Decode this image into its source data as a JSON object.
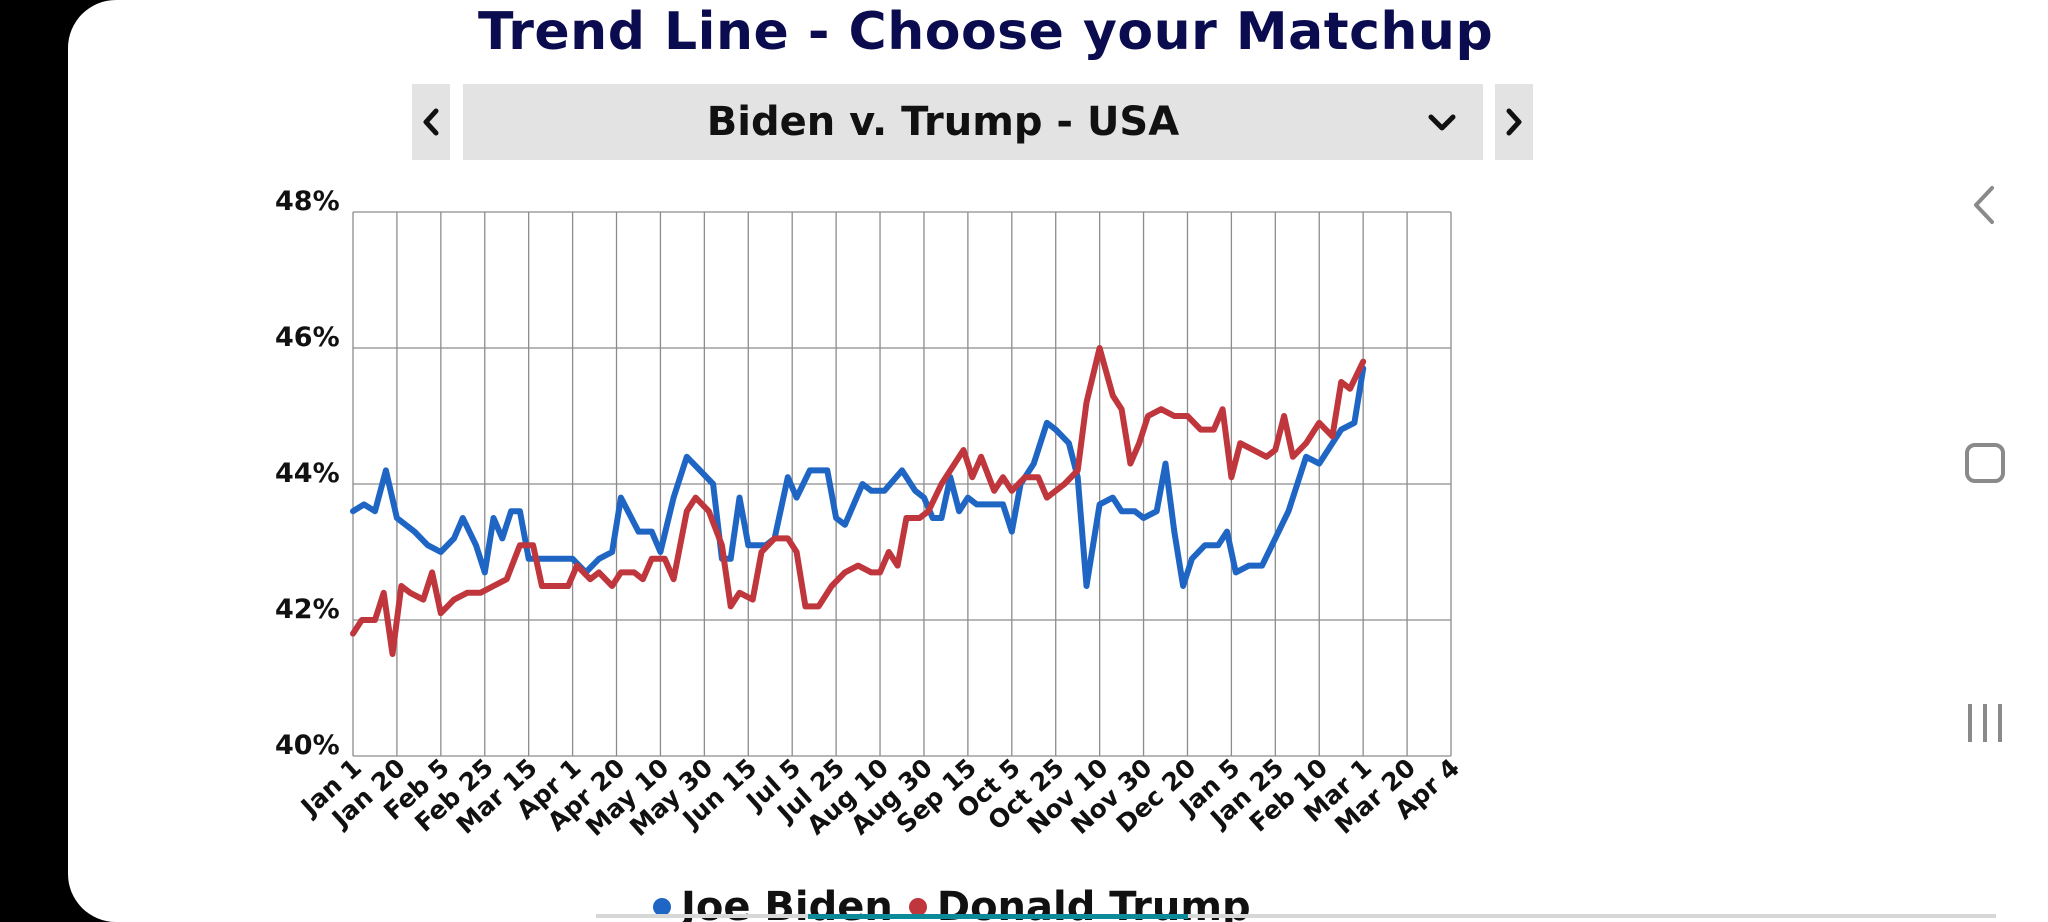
{
  "header": {
    "title": "Trend Line - Choose your Matchup"
  },
  "matchup": {
    "selected": "Biden v. Trump - USA",
    "prev_icon": "chevron-left-icon",
    "next_icon": "chevron-right-icon",
    "dropdown_icon": "chevron-down-icon"
  },
  "legend": [
    {
      "label": "Joe Biden",
      "color": "#1f66c4"
    },
    {
      "label": "Donald Trump",
      "color": "#c0363d"
    }
  ],
  "system_nav": [
    "back-icon",
    "home-icon",
    "recents-icon"
  ],
  "chart_data": {
    "type": "line",
    "ylim": [
      40,
      48
    ],
    "yticks": [
      "40%",
      "42%",
      "44%",
      "46%",
      "48%"
    ],
    "xticks": [
      "Jan 1",
      "Jan 20",
      "Feb 5",
      "Feb 25",
      "Mar 15",
      "Apr 1",
      "Apr 20",
      "May 10",
      "May 30",
      "Jun 15",
      "Jul 5",
      "Jul 25",
      "Aug 10",
      "Aug 30",
      "Sep 15",
      "Oct 5",
      "Oct 25",
      "Nov 10",
      "Nov 30",
      "Dec 20",
      "Jan 5",
      "Jan 25",
      "Feb 10",
      "Mar 1",
      "Mar 20",
      "Apr 4"
    ],
    "grid": true,
    "legend_position": "bottom",
    "series": [
      {
        "name": "Joe Biden",
        "color": "#1f66c4",
        "points": [
          [
            0,
            43.6
          ],
          [
            0.25,
            43.7
          ],
          [
            0.5,
            43.6
          ],
          [
            0.75,
            44.2
          ],
          [
            1,
            43.5
          ],
          [
            1.4,
            43.3
          ],
          [
            1.7,
            43.1
          ],
          [
            2,
            43.0
          ],
          [
            2.3,
            43.2
          ],
          [
            2.5,
            43.5
          ],
          [
            2.8,
            43.1
          ],
          [
            3,
            42.7
          ],
          [
            3.2,
            43.5
          ],
          [
            3.4,
            43.2
          ],
          [
            3.6,
            43.6
          ],
          [
            3.8,
            43.6
          ],
          [
            4,
            42.9
          ],
          [
            4.5,
            42.9
          ],
          [
            5,
            42.9
          ],
          [
            5.3,
            42.7
          ],
          [
            5.6,
            42.9
          ],
          [
            5.9,
            43.0
          ],
          [
            6.1,
            43.8
          ],
          [
            6.5,
            43.3
          ],
          [
            6.8,
            43.3
          ],
          [
            7,
            43.0
          ],
          [
            7.3,
            43.8
          ],
          [
            7.6,
            44.4
          ],
          [
            7.9,
            44.2
          ],
          [
            8.2,
            44.0
          ],
          [
            8.4,
            42.9
          ],
          [
            8.6,
            42.9
          ],
          [
            8.8,
            43.8
          ],
          [
            9,
            43.1
          ],
          [
            9.4,
            43.1
          ],
          [
            9.6,
            43.2
          ],
          [
            9.9,
            44.1
          ],
          [
            10.1,
            43.8
          ],
          [
            10.4,
            44.2
          ],
          [
            10.8,
            44.2
          ],
          [
            11,
            43.5
          ],
          [
            11.2,
            43.4
          ],
          [
            11.6,
            44.0
          ],
          [
            11.8,
            43.9
          ],
          [
            12.1,
            43.9
          ],
          [
            12.5,
            44.2
          ],
          [
            12.8,
            43.9
          ],
          [
            13,
            43.8
          ],
          [
            13.2,
            43.5
          ],
          [
            13.4,
            43.5
          ],
          [
            13.6,
            44.1
          ],
          [
            13.8,
            43.6
          ],
          [
            14,
            43.8
          ],
          [
            14.2,
            43.7
          ],
          [
            14.5,
            43.7
          ],
          [
            14.8,
            43.7
          ],
          [
            15,
            43.3
          ],
          [
            15.2,
            44.0
          ],
          [
            15.5,
            44.3
          ],
          [
            15.8,
            44.9
          ],
          [
            16,
            44.8
          ],
          [
            16.3,
            44.6
          ],
          [
            16.5,
            44.1
          ],
          [
            16.7,
            42.5
          ],
          [
            17,
            43.7
          ],
          [
            17.3,
            43.8
          ],
          [
            17.5,
            43.6
          ],
          [
            17.8,
            43.6
          ],
          [
            18,
            43.5
          ],
          [
            18.3,
            43.6
          ],
          [
            18.5,
            44.3
          ],
          [
            18.7,
            43.3
          ],
          [
            18.9,
            42.5
          ],
          [
            19.1,
            42.9
          ],
          [
            19.4,
            43.1
          ],
          [
            19.7,
            43.1
          ],
          [
            19.9,
            43.3
          ],
          [
            20.1,
            42.7
          ],
          [
            20.4,
            42.8
          ],
          [
            20.7,
            42.8
          ],
          [
            21,
            43.2
          ],
          [
            21.3,
            43.6
          ],
          [
            21.5,
            44.0
          ],
          [
            21.7,
            44.4
          ],
          [
            22,
            44.3
          ],
          [
            22.3,
            44.6
          ],
          [
            22.5,
            44.8
          ],
          [
            22.8,
            44.9
          ],
          [
            23,
            45.7
          ]
        ]
      },
      {
        "name": "Donald Trump",
        "color": "#c0363d",
        "points": [
          [
            0,
            41.8
          ],
          [
            0.2,
            42.0
          ],
          [
            0.5,
            42.0
          ],
          [
            0.7,
            42.4
          ],
          [
            0.9,
            41.5
          ],
          [
            1.1,
            42.5
          ],
          [
            1.3,
            42.4
          ],
          [
            1.6,
            42.3
          ],
          [
            1.8,
            42.7
          ],
          [
            2,
            42.1
          ],
          [
            2.3,
            42.3
          ],
          [
            2.6,
            42.4
          ],
          [
            2.9,
            42.4
          ],
          [
            3.2,
            42.5
          ],
          [
            3.5,
            42.6
          ],
          [
            3.8,
            43.1
          ],
          [
            4.1,
            43.1
          ],
          [
            4.3,
            42.5
          ],
          [
            4.6,
            42.5
          ],
          [
            4.9,
            42.5
          ],
          [
            5.1,
            42.8
          ],
          [
            5.4,
            42.6
          ],
          [
            5.6,
            42.7
          ],
          [
            5.9,
            42.5
          ],
          [
            6.1,
            42.7
          ],
          [
            6.4,
            42.7
          ],
          [
            6.6,
            42.6
          ],
          [
            6.8,
            42.9
          ],
          [
            7.1,
            42.9
          ],
          [
            7.3,
            42.6
          ],
          [
            7.6,
            43.6
          ],
          [
            7.8,
            43.8
          ],
          [
            8.1,
            43.6
          ],
          [
            8.4,
            43.1
          ],
          [
            8.6,
            42.2
          ],
          [
            8.8,
            42.4
          ],
          [
            9.1,
            42.3
          ],
          [
            9.3,
            43.0
          ],
          [
            9.6,
            43.2
          ],
          [
            9.9,
            43.2
          ],
          [
            10.1,
            43.0
          ],
          [
            10.3,
            42.2
          ],
          [
            10.6,
            42.2
          ],
          [
            10.9,
            42.5
          ],
          [
            11.2,
            42.7
          ],
          [
            11.5,
            42.8
          ],
          [
            11.8,
            42.7
          ],
          [
            12,
            42.7
          ],
          [
            12.2,
            43.0
          ],
          [
            12.4,
            42.8
          ],
          [
            12.6,
            43.5
          ],
          [
            12.9,
            43.5
          ],
          [
            13.1,
            43.6
          ],
          [
            13.4,
            44.0
          ],
          [
            13.6,
            44.2
          ],
          [
            13.9,
            44.5
          ],
          [
            14.1,
            44.1
          ],
          [
            14.3,
            44.4
          ],
          [
            14.6,
            43.9
          ],
          [
            14.8,
            44.1
          ],
          [
            15,
            43.9
          ],
          [
            15.3,
            44.1
          ],
          [
            15.6,
            44.1
          ],
          [
            15.8,
            43.8
          ],
          [
            16.2,
            44.0
          ],
          [
            16.5,
            44.2
          ],
          [
            16.7,
            45.2
          ],
          [
            17,
            46.0
          ],
          [
            17.3,
            45.3
          ],
          [
            17.5,
            45.1
          ],
          [
            17.7,
            44.3
          ],
          [
            17.9,
            44.6
          ],
          [
            18.1,
            45.0
          ],
          [
            18.4,
            45.1
          ],
          [
            18.7,
            45.0
          ],
          [
            19,
            45.0
          ],
          [
            19.3,
            44.8
          ],
          [
            19.6,
            44.8
          ],
          [
            19.8,
            45.1
          ],
          [
            20,
            44.1
          ],
          [
            20.2,
            44.6
          ],
          [
            20.5,
            44.5
          ],
          [
            20.8,
            44.4
          ],
          [
            21,
            44.5
          ],
          [
            21.2,
            45.0
          ],
          [
            21.4,
            44.4
          ],
          [
            21.7,
            44.6
          ],
          [
            22,
            44.9
          ],
          [
            22.3,
            44.7
          ],
          [
            22.5,
            45.5
          ],
          [
            22.7,
            45.4
          ],
          [
            23,
            45.8
          ]
        ]
      }
    ]
  }
}
